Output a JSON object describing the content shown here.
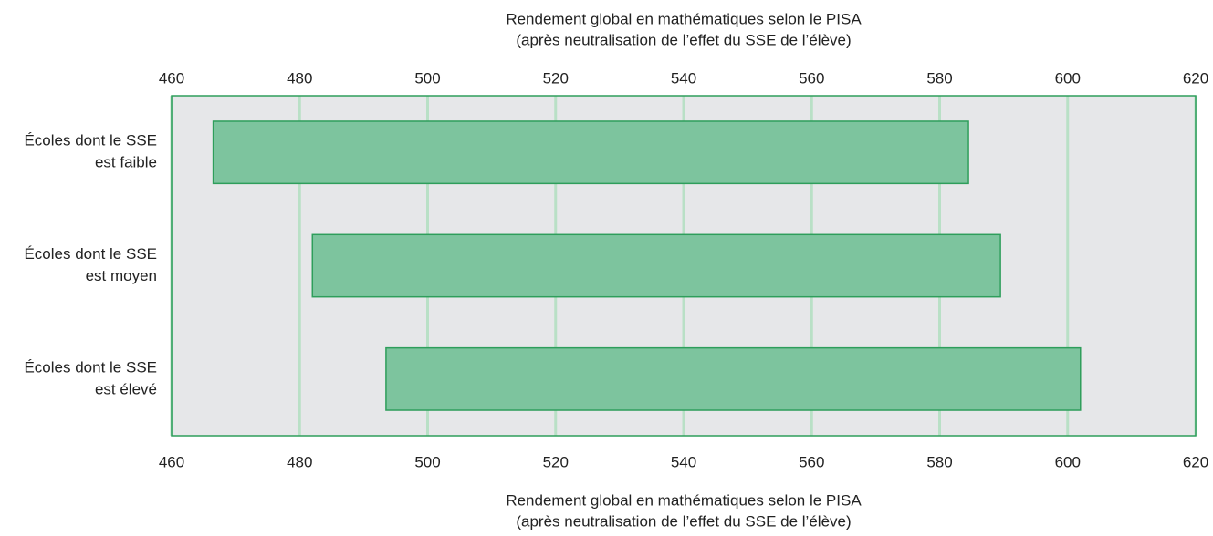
{
  "chart_data": {
    "type": "floating_bar",
    "xlabel": [
      "Rendement global en mathématiques selon le PISA",
      "(après neutralisation de l’effet du SSE de l’élève)"
    ],
    "categories": [
      [
        "Écoles dont le SSE",
        "est faible"
      ],
      [
        "Écoles dont le SSE",
        "est moyen"
      ],
      [
        "Écoles dont le SSE",
        "est élevé"
      ]
    ],
    "low": [
      466.5,
      482,
      493.5
    ],
    "high": [
      584.5,
      589.5,
      602
    ],
    "xlim": [
      460,
      620
    ],
    "xticks": [
      460,
      480,
      500,
      520,
      540,
      560,
      580,
      600,
      620
    ],
    "grid": true,
    "color": "#7dc49e",
    "edge_color": "#2e9e5b",
    "plot_background": "#e6e7e9",
    "grid_color": "#b9e0c6"
  }
}
